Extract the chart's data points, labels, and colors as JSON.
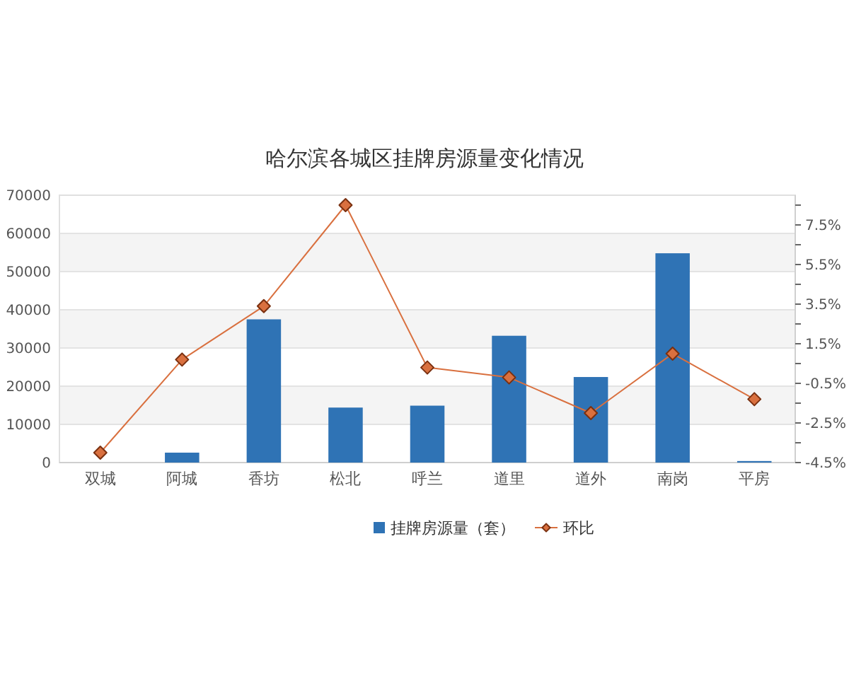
{
  "chart_data": {
    "type": "bar",
    "title": "哈尔滨各城区挂牌房源量变化情况",
    "categories": [
      "双城",
      "阿城",
      "香坊",
      "松北",
      "呼兰",
      "道里",
      "道外",
      "南岗",
      "平房"
    ],
    "series": [
      {
        "name": "挂牌房源量（套）",
        "color": "#2f73b5",
        "values": [
          null,
          2600,
          37500,
          14400,
          14900,
          33200,
          22400,
          54800,
          400
        ]
      },
      {
        "name": "环比",
        "type": "line",
        "axis": "y2",
        "color": "#d9703f",
        "values": [
          -4.0,
          0.7,
          3.4,
          8.5,
          0.3,
          -0.2,
          -2.0,
          1.0,
          -1.3
        ]
      }
    ],
    "ylim": [
      0,
      70000
    ],
    "yticks": [
      0,
      10000,
      20000,
      30000,
      40000,
      50000,
      60000,
      70000
    ],
    "y2lim": [
      -4.5,
      9.0
    ],
    "y2ticks": [
      {
        "value": -4.5,
        "label": "-4.5%"
      },
      {
        "value": -3.5,
        "label": null
      },
      {
        "value": -2.5,
        "label": "-2.5%"
      },
      {
        "value": -1.5,
        "label": null
      },
      {
        "value": -0.5,
        "label": "-0.5%"
      },
      {
        "value": 0.5,
        "label": null
      },
      {
        "value": 1.5,
        "label": "1.5%"
      },
      {
        "value": 2.5,
        "label": null
      },
      {
        "value": 3.5,
        "label": "3.5%"
      },
      {
        "value": 4.5,
        "label": null
      },
      {
        "value": 5.5,
        "label": "5.5%"
      },
      {
        "value": 6.5,
        "label": null
      },
      {
        "value": 7.5,
        "label": "7.5%"
      },
      {
        "value": 8.5,
        "label": null
      }
    ],
    "grid": "y",
    "legend": "bottom",
    "marker": "diamond",
    "line_style": "solid"
  }
}
